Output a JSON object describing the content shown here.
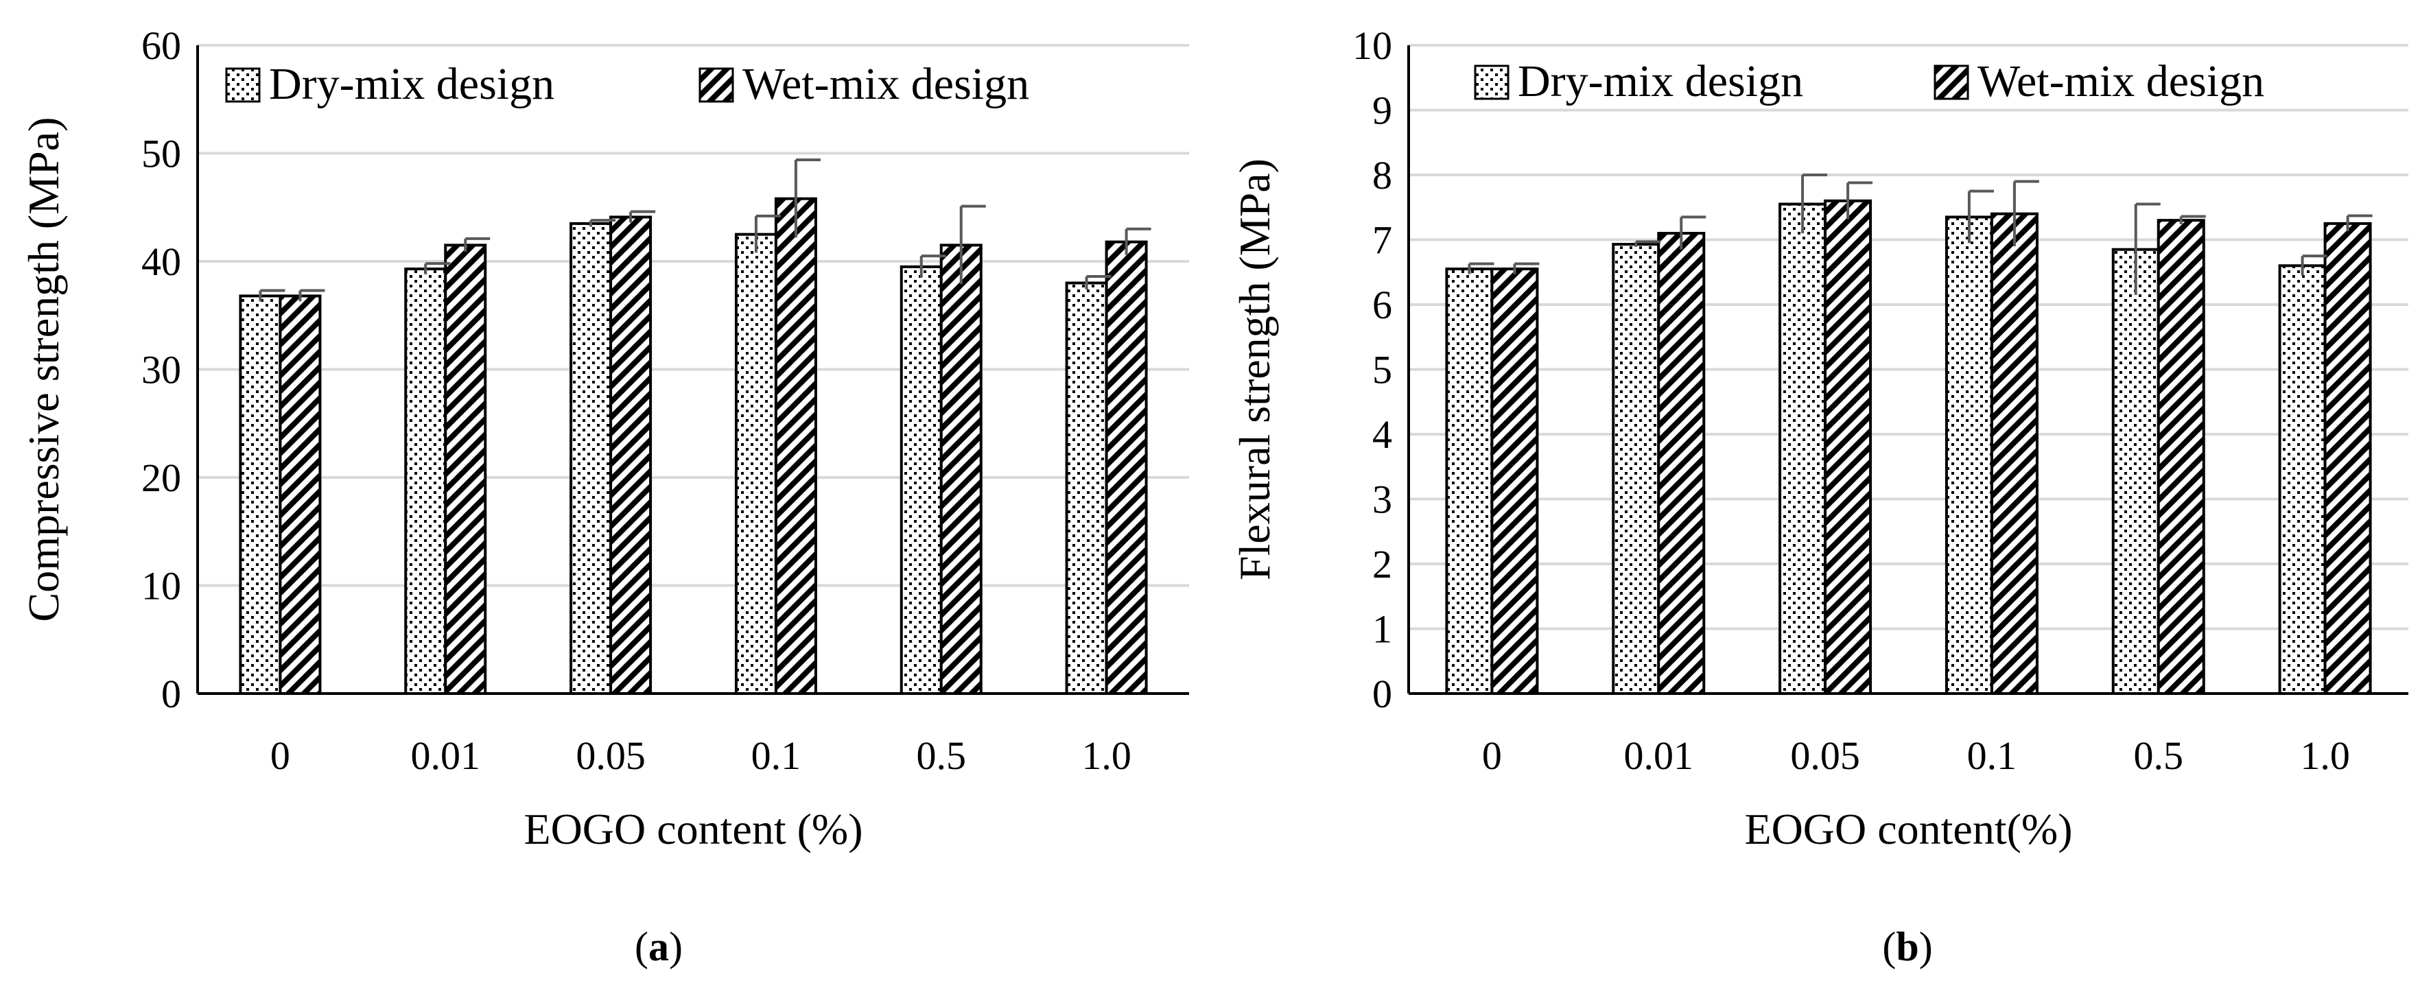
{
  "chart_data": [
    {
      "panel_label": "(a)",
      "panel_letter": "a",
      "type": "bar",
      "categories": [
        "0",
        "0.01",
        "0.05",
        "0.1",
        "0.5",
        "1.0"
      ],
      "xlabel": "EOGO content (%)",
      "ylabel": "Compressive strength (MPa)",
      "ylim": [
        0,
        60
      ],
      "yticks": [
        0,
        10,
        20,
        30,
        40,
        50,
        60
      ],
      "grid": true,
      "legend": "top",
      "series": [
        {
          "name": "Dry-mix design",
          "pattern": "dots",
          "values": [
            36.8,
            39.3,
            43.5,
            42.5,
            39.5,
            38.0
          ],
          "errors": [
            0.5,
            0.5,
            0.3,
            1.7,
            1.0,
            0.6
          ]
        },
        {
          "name": "Wet-mix design",
          "pattern": "stripes",
          "values": [
            36.8,
            41.5,
            44.1,
            45.8,
            41.5,
            41.8
          ],
          "errors": [
            0.5,
            0.6,
            0.5,
            3.6,
            3.6,
            1.2
          ]
        }
      ]
    },
    {
      "panel_label": "(b)",
      "panel_letter": "b",
      "type": "bar",
      "categories": [
        "0",
        "0.01",
        "0.05",
        "0.1",
        "0.5",
        "1.0"
      ],
      "xlabel": "EOGO content(%)",
      "ylabel": "Flexural strength (MPa)",
      "ylim": [
        0,
        10
      ],
      "yticks": [
        0,
        1,
        2,
        3,
        4,
        5,
        6,
        7,
        8,
        9,
        10
      ],
      "grid": true,
      "legend": "top",
      "series": [
        {
          "name": "Dry-mix design",
          "pattern": "dots",
          "values": [
            6.55,
            6.93,
            7.55,
            7.35,
            6.85,
            6.6
          ],
          "errors": [
            0.08,
            0.04,
            0.45,
            0.4,
            0.7,
            0.15
          ]
        },
        {
          "name": "Wet-mix design",
          "pattern": "stripes",
          "values": [
            6.55,
            7.1,
            7.6,
            7.4,
            7.3,
            7.25
          ],
          "errors": [
            0.08,
            0.25,
            0.28,
            0.5,
            0.06,
            0.12
          ]
        }
      ]
    }
  ],
  "colors": {
    "bar_fill": "#ffffff",
    "bar_stroke": "#000000",
    "pattern_ink": "#000000",
    "grid": "#d9d9d9",
    "error_bar": "#595959"
  }
}
